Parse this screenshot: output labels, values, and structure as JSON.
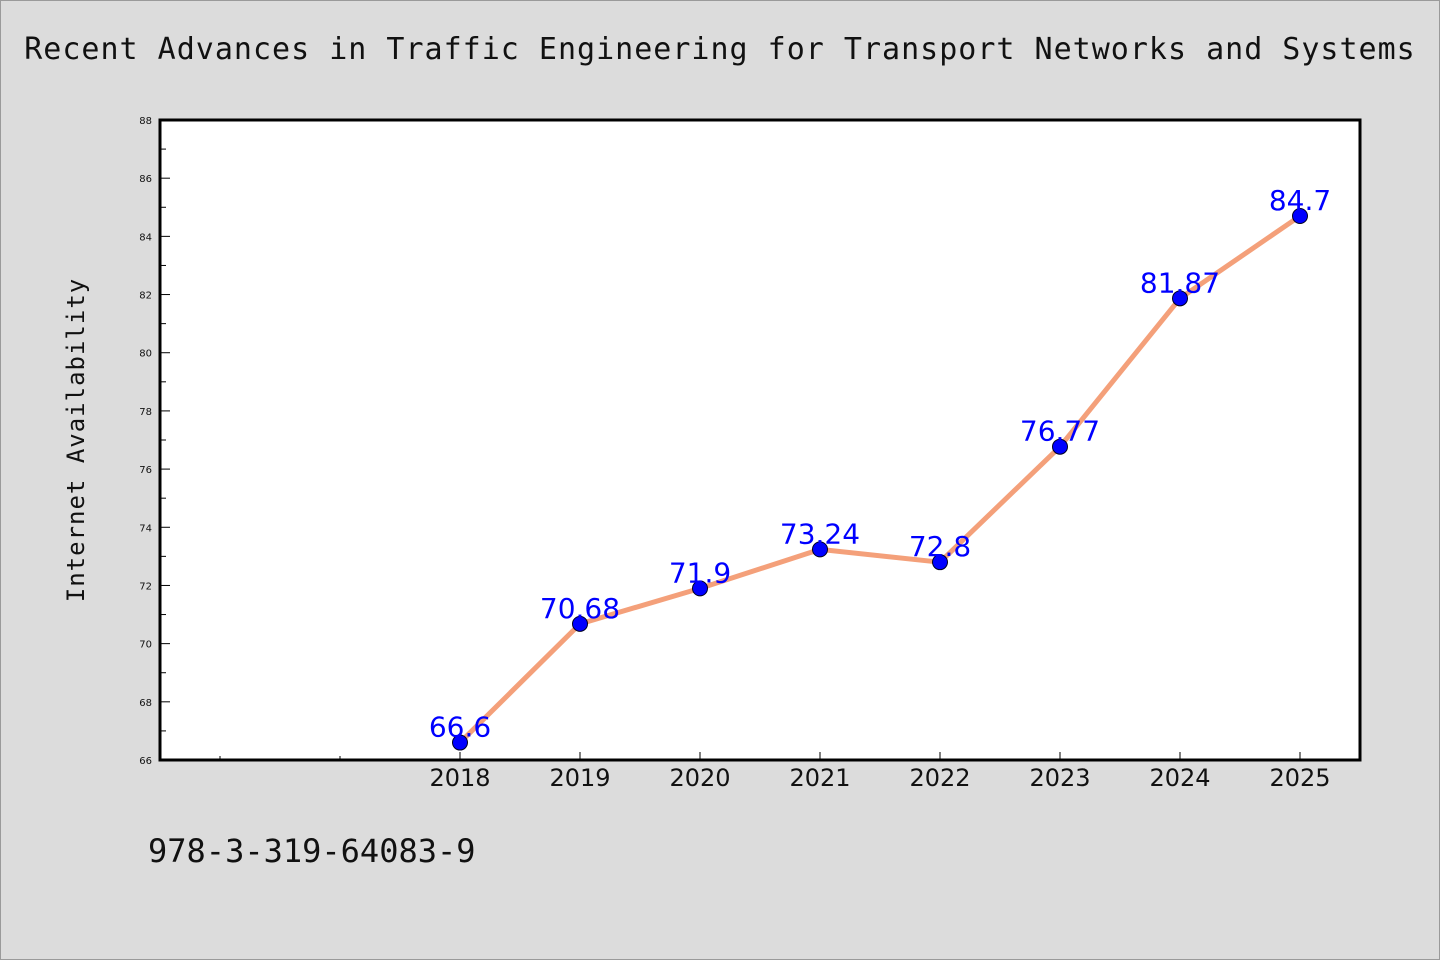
{
  "chart_data": {
    "type": "line",
    "title": "Recent Advances in Traffic Engineering for Transport Networks and Systems",
    "xlabel": "",
    "ylabel": "Internet Availability",
    "x": [
      "2018",
      "2019",
      "2020",
      "2021",
      "2022",
      "2023",
      "2024",
      "2025"
    ],
    "series": [
      {
        "values": [
          66.6,
          70.68,
          71.9,
          73.24,
          72.8,
          76.77,
          81.87,
          84.7
        ]
      }
    ],
    "data_labels": [
      "66.6",
      "70.68",
      "71.9",
      "73.24",
      "72.8",
      "76.77",
      "81.87",
      "84.7"
    ],
    "ylim": [
      66,
      88
    ],
    "yticks": [
      66,
      68,
      70,
      72,
      74,
      76,
      78,
      80,
      82,
      84,
      86,
      88
    ],
    "grid": false,
    "line_color": "#f4a07a",
    "marker_color": "#0000ff",
    "label_color": "#0000ff",
    "plot_background": "#ffffff",
    "page_background": "#dcdcdc"
  },
  "footer": {
    "isbn": "978-3-319-64083-9"
  }
}
